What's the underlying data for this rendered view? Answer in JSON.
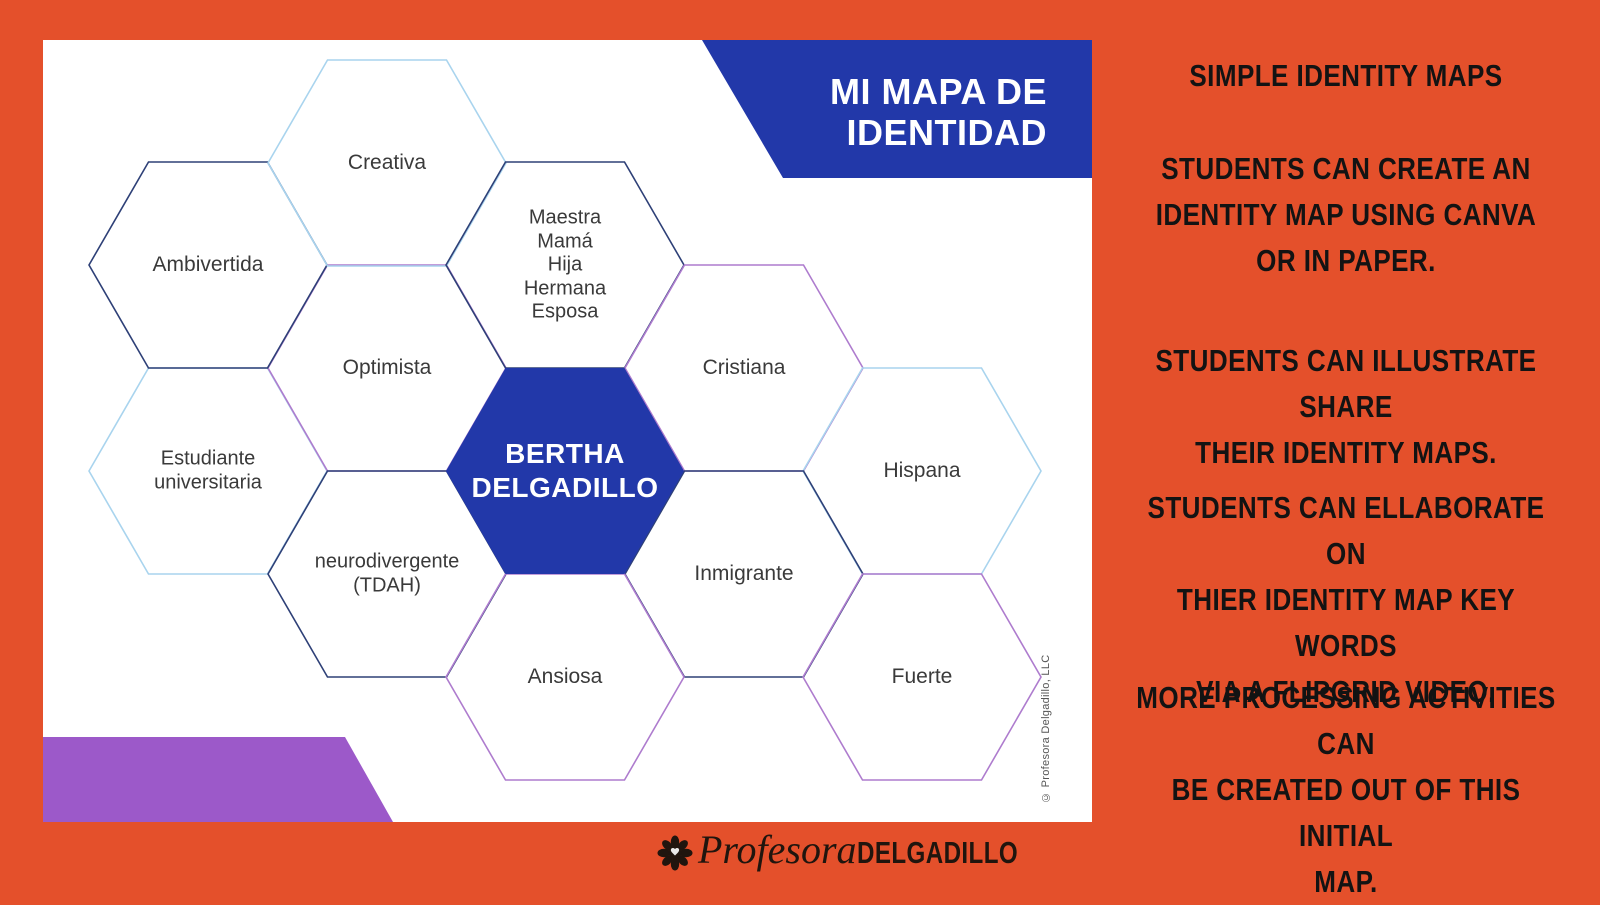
{
  "colors": {
    "background": "#E4502B",
    "card": "#FFFFFF",
    "accent_blue": "#2238A9",
    "accent_purple": "#9C59C9",
    "hex_border_lightblue": "#A9D4EE",
    "hex_border_navy": "#2E4077",
    "hex_border_purple": "#AE7CCE",
    "label_text": "#3A3A3A",
    "panel_text": "#131313",
    "brand_text": "#20150E"
  },
  "card": {
    "banner": {
      "title": "MI MAPA DE\nIDENTIDAD"
    },
    "hexagons": [
      {
        "id": "estudiante",
        "label": "Estudiante\nuniversitaria",
        "color": "lightblue"
      },
      {
        "id": "optimista",
        "label": "Optimista",
        "color": "purple"
      },
      {
        "id": "ambivertida",
        "label": "Ambivertida",
        "color": "navy"
      },
      {
        "id": "creativa",
        "label": "Creativa",
        "color": "lightblue"
      },
      {
        "id": "maestra",
        "label": "Maestra\nMamá\nHija\nHermana\nEsposa",
        "color": "navy"
      },
      {
        "id": "cristiana",
        "label": "Cristiana",
        "color": "purple"
      },
      {
        "id": "hispana",
        "label": "Hispana",
        "color": "lightblue"
      },
      {
        "id": "inmigrante",
        "label": "Inmigrante",
        "color": "navy"
      },
      {
        "id": "neurodivergente",
        "label": "neurodivergente\n(TDAH)",
        "color": "navy"
      },
      {
        "id": "ansiosa",
        "label": "Ansiosa",
        "color": "purple"
      },
      {
        "id": "fuerte",
        "label": "Fuerte",
        "color": "purple"
      },
      {
        "id": "bertha",
        "label": "BERTHA\nDELGADILLO",
        "color": "blue",
        "filled": true
      }
    ],
    "copyright": "© Profesora Delgadillo, LLC"
  },
  "panel": {
    "heading": "SIMPLE IDENTITY MAPS",
    "paragraphs": [
      "STUDENTS CAN CREATE AN\nIDENTITY MAP USING CANVA\nOR IN PAPER.",
      "STUDENTS CAN ILLUSTRATE SHARE\nTHEIR IDENTITY MAPS.",
      "STUDENTS CAN ELLABORATE ON\nTHIER IDENTITY MAP KEY WORDS\nVIA A FLIPGRID VIDEO.",
      "MORE PROCESSING ACTIVITIES CAN\nBE CREATED OUT OF THIS INITIAL\nMAP."
    ]
  },
  "footer": {
    "icons": {
      "brand": "rose-icon"
    },
    "brand_script": "Profesora",
    "brand_caps": "DELGADILLO"
  }
}
